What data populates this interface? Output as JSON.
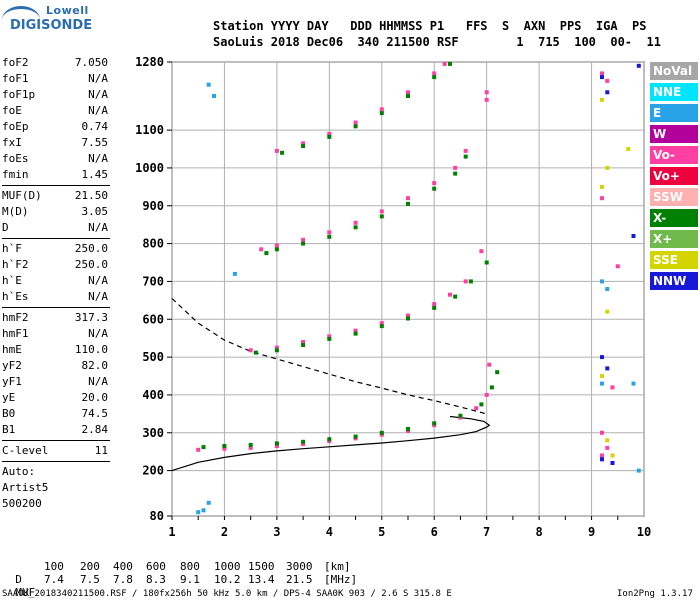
{
  "logo": {
    "line1": "Lowell",
    "line2": "DIGISONDE"
  },
  "header": {
    "line1": "Station YYYY DAY   DDD HHMMSS P1   FFS  S  AXN  PPS  IGA  PS",
    "line2": "SaoLuis 2018 Dec06  340 211500 RSF        1  715  100  00-  11"
  },
  "params": [
    [
      {
        "label": "foF2",
        "value": "7.050"
      },
      {
        "label": "foF1",
        "value": "N/A"
      },
      {
        "label": "foF1p",
        "value": "N/A"
      },
      {
        "label": "foE",
        "value": "N/A"
      },
      {
        "label": "foEp",
        "value": "0.74"
      },
      {
        "label": "fxI",
        "value": "7.55"
      },
      {
        "label": "foEs",
        "value": "N/A"
      },
      {
        "label": "fmin",
        "value": "1.45"
      }
    ],
    [
      {
        "label": "MUF(D)",
        "value": "21.50"
      },
      {
        "label": "M(D)",
        "value": "3.05"
      },
      {
        "label": "D",
        "value": "N/A"
      }
    ],
    [
      {
        "label": "h`F",
        "value": "250.0"
      },
      {
        "label": "h`F2",
        "value": "250.0"
      },
      {
        "label": "h`E",
        "value": "N/A"
      },
      {
        "label": "h`Es",
        "value": "N/A"
      }
    ],
    [
      {
        "label": "hmF2",
        "value": "317.3"
      },
      {
        "label": "hmF1",
        "value": "N/A"
      },
      {
        "label": "hmE",
        "value": "110.0"
      },
      {
        "label": "yF2",
        "value": "82.0"
      },
      {
        "label": "yF1",
        "value": "N/A"
      },
      {
        "label": "yE",
        "value": "20.0"
      },
      {
        "label": "B0",
        "value": "74.5"
      },
      {
        "label": "B1",
        "value": "2.84"
      }
    ],
    [
      {
        "label": "C-level",
        "value": "11"
      }
    ]
  ],
  "auto": {
    "line1": "Auto:",
    "line2": "Artist5",
    "line3": "500200"
  },
  "legend": [
    {
      "label": "NoVal",
      "color": "#a6a6a6"
    },
    {
      "label": "NNE",
      "color": "#00e5ff"
    },
    {
      "label": "E",
      "color": "#29a3e8"
    },
    {
      "label": "W",
      "color": "#b1009c"
    },
    {
      "label": "Vo-",
      "color": "#ff3fa2"
    },
    {
      "label": "Vo+",
      "color": "#ee0040"
    },
    {
      "label": "SSW",
      "color": "#ffb0b0"
    },
    {
      "label": "X-",
      "color": "#008000"
    },
    {
      "label": "X+",
      "color": "#6fba4a"
    },
    {
      "label": "SSE",
      "color": "#d4d400"
    },
    {
      "label": "NNW",
      "color": "#1818d8"
    }
  ],
  "muf_table": {
    "d_label": "D",
    "d_values": [
      "100",
      "200",
      "400",
      "600",
      "800",
      "1000",
      "1500",
      "3000"
    ],
    "d_unit": "[km]",
    "muf_label": "MUF",
    "muf_values": [
      "7.4",
      "7.5",
      "7.8",
      "8.3",
      "9.1",
      "10.2",
      "13.4",
      "21.5"
    ],
    "muf_unit": "[MHz]"
  },
  "footer": {
    "left": "SAAOK_2018340211500.RSF / 180fx256h 50 kHz 5.0 km / DPS-4 SAA0K 903 / 2.6 S 315.8 E",
    "right": "Ion2Png 1.3.17"
  },
  "chart_data": {
    "type": "scatter",
    "x_ticks": [
      "1",
      "2",
      "3",
      "4",
      "5",
      "6",
      "7",
      "8",
      "9",
      "10"
    ],
    "y_ticks": [
      "80",
      "200",
      "300",
      "400",
      "500",
      "600",
      "700",
      "800",
      "900",
      "1000",
      "1100",
      "1280"
    ],
    "xlim": [
      1,
      10
    ],
    "ylim": [
      80,
      1280
    ],
    "grid": true,
    "legend_position": "right",
    "series": [
      {
        "color": "#ff3fa2",
        "points": [
          [
            1.5,
            255
          ],
          [
            2,
            258
          ],
          [
            2.5,
            260
          ],
          [
            3,
            265
          ],
          [
            3.5,
            270
          ],
          [
            4,
            278
          ],
          [
            4.5,
            285
          ],
          [
            5,
            295
          ],
          [
            5.5,
            305
          ],
          [
            6,
            320
          ],
          [
            6.5,
            340
          ],
          [
            6.8,
            365
          ],
          [
            7,
            400
          ],
          [
            7.05,
            480
          ]
        ]
      },
      {
        "color": "#008000",
        "points": [
          [
            1.6,
            262
          ],
          [
            2,
            265
          ],
          [
            2.5,
            268
          ],
          [
            3,
            272
          ],
          [
            3.5,
            276
          ],
          [
            4,
            283
          ],
          [
            4.5,
            290
          ],
          [
            5,
            300
          ],
          [
            5.5,
            310
          ],
          [
            6,
            325
          ],
          [
            6.5,
            345
          ],
          [
            6.9,
            375
          ],
          [
            7.1,
            420
          ],
          [
            7.2,
            460
          ]
        ]
      },
      {
        "color": "#ff3fa2",
        "points": [
          [
            2.5,
            518
          ],
          [
            3,
            525
          ],
          [
            3.5,
            540
          ],
          [
            4,
            555
          ],
          [
            4.5,
            570
          ],
          [
            5,
            590
          ],
          [
            5.5,
            610
          ],
          [
            6,
            640
          ],
          [
            6.3,
            665
          ],
          [
            6.6,
            700
          ],
          [
            6.9,
            780
          ]
        ]
      },
      {
        "color": "#008000",
        "points": [
          [
            2.6,
            512
          ],
          [
            3,
            518
          ],
          [
            3.5,
            532
          ],
          [
            4,
            548
          ],
          [
            4.5,
            562
          ],
          [
            5,
            582
          ],
          [
            5.5,
            602
          ],
          [
            6,
            630
          ],
          [
            6.4,
            660
          ],
          [
            6.7,
            700
          ],
          [
            7,
            750
          ]
        ]
      },
      {
        "color": "#ff3fa2",
        "points": [
          [
            2.7,
            785
          ],
          [
            3,
            795
          ],
          [
            3.5,
            810
          ],
          [
            4,
            830
          ],
          [
            4.5,
            855
          ],
          [
            5,
            885
          ],
          [
            5.5,
            920
          ],
          [
            6,
            960
          ],
          [
            6.4,
            1000
          ],
          [
            6.6,
            1045
          ]
        ]
      },
      {
        "color": "#008000",
        "points": [
          [
            2.8,
            775
          ],
          [
            3,
            785
          ],
          [
            3.5,
            800
          ],
          [
            4,
            818
          ],
          [
            4.5,
            843
          ],
          [
            5,
            872
          ],
          [
            5.5,
            905
          ],
          [
            6,
            945
          ],
          [
            6.4,
            985
          ],
          [
            6.6,
            1030
          ]
        ]
      },
      {
        "color": "#ff3fa2",
        "points": [
          [
            3,
            1045
          ],
          [
            3.5,
            1065
          ],
          [
            4,
            1090
          ],
          [
            4.5,
            1120
          ],
          [
            5,
            1155
          ],
          [
            5.5,
            1200
          ],
          [
            6,
            1250
          ],
          [
            6.2,
            1275
          ]
        ]
      },
      {
        "color": "#008000",
        "points": [
          [
            3.1,
            1040
          ],
          [
            3.5,
            1058
          ],
          [
            4,
            1082
          ],
          [
            4.5,
            1110
          ],
          [
            5,
            1145
          ],
          [
            5.5,
            1190
          ],
          [
            6,
            1240
          ],
          [
            6.3,
            1275
          ]
        ]
      },
      {
        "color": "#ff3fa2",
        "points": [
          [
            7,
            1200
          ],
          [
            7,
            1180
          ],
          [
            9.2,
            300
          ],
          [
            9.3,
            260
          ],
          [
            9.2,
            240
          ],
          [
            9.4,
            420
          ],
          [
            9.2,
            1250
          ],
          [
            9.3,
            1230
          ],
          [
            9.2,
            920
          ],
          [
            9.5,
            740
          ]
        ]
      },
      {
        "color": "#1818d8",
        "points": [
          [
            9.2,
            1240
          ],
          [
            9.3,
            1200
          ],
          [
            9.2,
            500
          ],
          [
            9.3,
            470
          ],
          [
            9.8,
            820
          ],
          [
            9.9,
            1270
          ],
          [
            9.2,
            230
          ],
          [
            9.4,
            220
          ]
        ]
      },
      {
        "color": "#d4d400",
        "points": [
          [
            9.2,
            1180
          ],
          [
            9.3,
            1000
          ],
          [
            9.2,
            950
          ],
          [
            9.7,
            1050
          ],
          [
            9.3,
            620
          ],
          [
            9.2,
            450
          ],
          [
            9.3,
            280
          ],
          [
            9.4,
            240
          ]
        ]
      },
      {
        "color": "#29a3e8",
        "points": [
          [
            1.6,
            95
          ],
          [
            1.7,
            115
          ],
          [
            1.5,
            90
          ],
          [
            2.2,
            720
          ],
          [
            1.7,
            1220
          ],
          [
            1.8,
            1190
          ],
          [
            9.2,
            700
          ],
          [
            9.3,
            680
          ],
          [
            9.2,
            430
          ],
          [
            9.8,
            430
          ],
          [
            9.9,
            200
          ]
        ]
      }
    ],
    "curves": [
      {
        "style": "solid",
        "points": [
          [
            1,
            200
          ],
          [
            1.5,
            222
          ],
          [
            2,
            235
          ],
          [
            2.5,
            245
          ],
          [
            3,
            252
          ],
          [
            3.5,
            258
          ],
          [
            4,
            263
          ],
          [
            4.5,
            268
          ],
          [
            5,
            273
          ],
          [
            5.5,
            279
          ],
          [
            6,
            286
          ],
          [
            6.5,
            295
          ],
          [
            6.8,
            303
          ],
          [
            7,
            315
          ],
          [
            7.05,
            320
          ],
          [
            6.95,
            330
          ],
          [
            6.7,
            337
          ],
          [
            6.3,
            343
          ]
        ]
      },
      {
        "style": "dashed",
        "points": [
          [
            1,
            655
          ],
          [
            1.5,
            590
          ],
          [
            2,
            545
          ],
          [
            2.5,
            515
          ],
          [
            3,
            495
          ],
          [
            3.5,
            475
          ],
          [
            4,
            455
          ],
          [
            4.5,
            435
          ],
          [
            5,
            418
          ],
          [
            5.5,
            400
          ],
          [
            6,
            385
          ],
          [
            6.5,
            368
          ],
          [
            7,
            350
          ]
        ]
      }
    ]
  }
}
